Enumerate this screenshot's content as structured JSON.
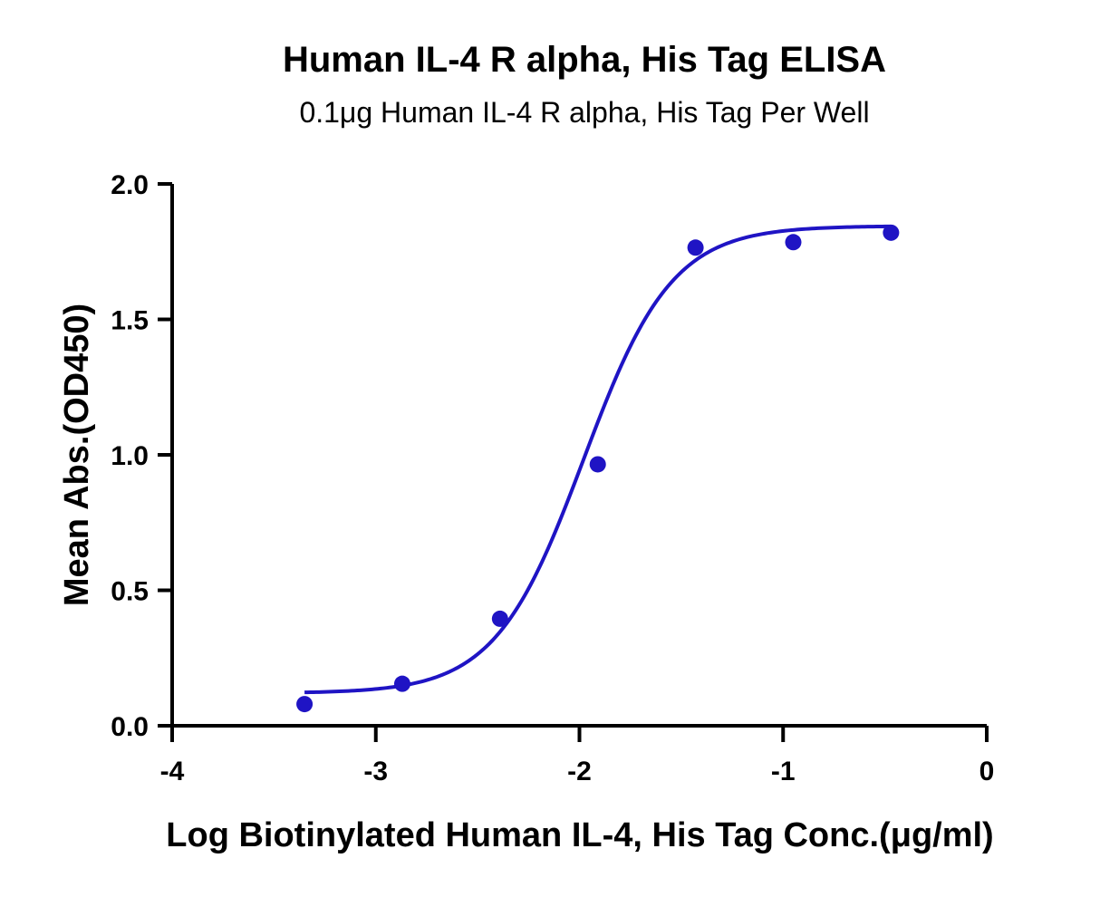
{
  "chart_data": {
    "type": "scatter",
    "title": "Human IL-4 R alpha, His Tag ELISA",
    "subtitle": "0.1μg Human IL-4 R alpha, His Tag Per Well",
    "xlabel": "Log Biotinylated Human IL-4, His Tag Conc.(μg/ml)",
    "ylabel": "Mean Abs.(OD450)",
    "xlim": [
      -4,
      0
    ],
    "ylim": [
      0,
      2.0
    ],
    "xticks": [
      "-4",
      "-3",
      "-2",
      "-1",
      "0"
    ],
    "yticks": [
      "0.0",
      "0.5",
      "1.0",
      "1.5",
      "2.0"
    ],
    "grid": false,
    "color": "#1f14c4",
    "series": [
      {
        "points": [
          {
            "x": -3.35,
            "y": 0.08
          },
          {
            "x": -2.87,
            "y": 0.155
          },
          {
            "x": -2.39,
            "y": 0.395
          },
          {
            "x": -1.91,
            "y": 0.965
          },
          {
            "x": -1.43,
            "y": 1.765
          },
          {
            "x": -0.95,
            "y": 1.785
          },
          {
            "x": -0.47,
            "y": 1.82
          }
        ],
        "fit": {
          "model": "four-parameter logistic",
          "bottom": 0.12,
          "top": 1.845,
          "logEC50": -1.98,
          "hill": 2.0,
          "x_range": [
            -3.35,
            -0.47
          ]
        }
      }
    ]
  }
}
